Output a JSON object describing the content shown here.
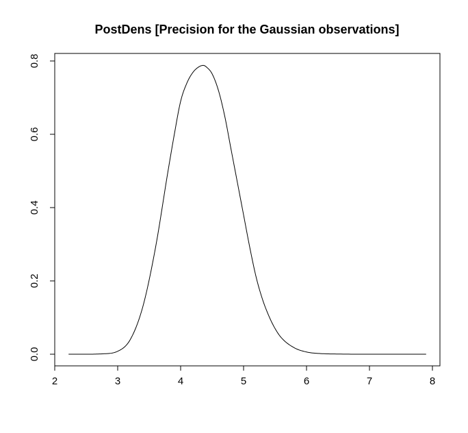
{
  "chart_data": {
    "type": "line",
    "title": "PostDens [Precision for the Gaussian observations]",
    "xlabel": "",
    "ylabel": "",
    "xlim": [
      2,
      8
    ],
    "ylim": [
      0,
      0.8
    ],
    "x_ticks": [
      2,
      3,
      4,
      5,
      6,
      7,
      8
    ],
    "y_ticks": [
      0.0,
      0.2,
      0.4,
      0.6,
      0.8
    ],
    "x_tick_labels": [
      "2",
      "3",
      "4",
      "5",
      "6",
      "7",
      "8"
    ],
    "y_tick_labels": [
      "0.0",
      "0.2",
      "0.4",
      "0.6",
      "0.8"
    ],
    "grid": false,
    "legend": "none",
    "line_color": "#000000",
    "series": [
      {
        "x": [
          2.22,
          2.5,
          2.75,
          3.0,
          3.2,
          3.4,
          3.6,
          3.8,
          3.9,
          4.0,
          4.1,
          4.2,
          4.3,
          4.36,
          4.42,
          4.5,
          4.6,
          4.7,
          4.8,
          4.9,
          5.0,
          5.1,
          5.2,
          5.3,
          5.4,
          5.5,
          5.6,
          5.8,
          6.0,
          6.2,
          6.5,
          7.0,
          7.5,
          7.9
        ],
        "y": [
          0.0,
          0.0,
          0.001,
          0.008,
          0.04,
          0.13,
          0.29,
          0.5,
          0.6,
          0.69,
          0.74,
          0.77,
          0.785,
          0.788,
          0.782,
          0.765,
          0.72,
          0.65,
          0.56,
          0.47,
          0.38,
          0.29,
          0.21,
          0.15,
          0.105,
          0.07,
          0.045,
          0.018,
          0.006,
          0.002,
          0.0005,
          0.0,
          0.0,
          0.0
        ]
      }
    ]
  }
}
